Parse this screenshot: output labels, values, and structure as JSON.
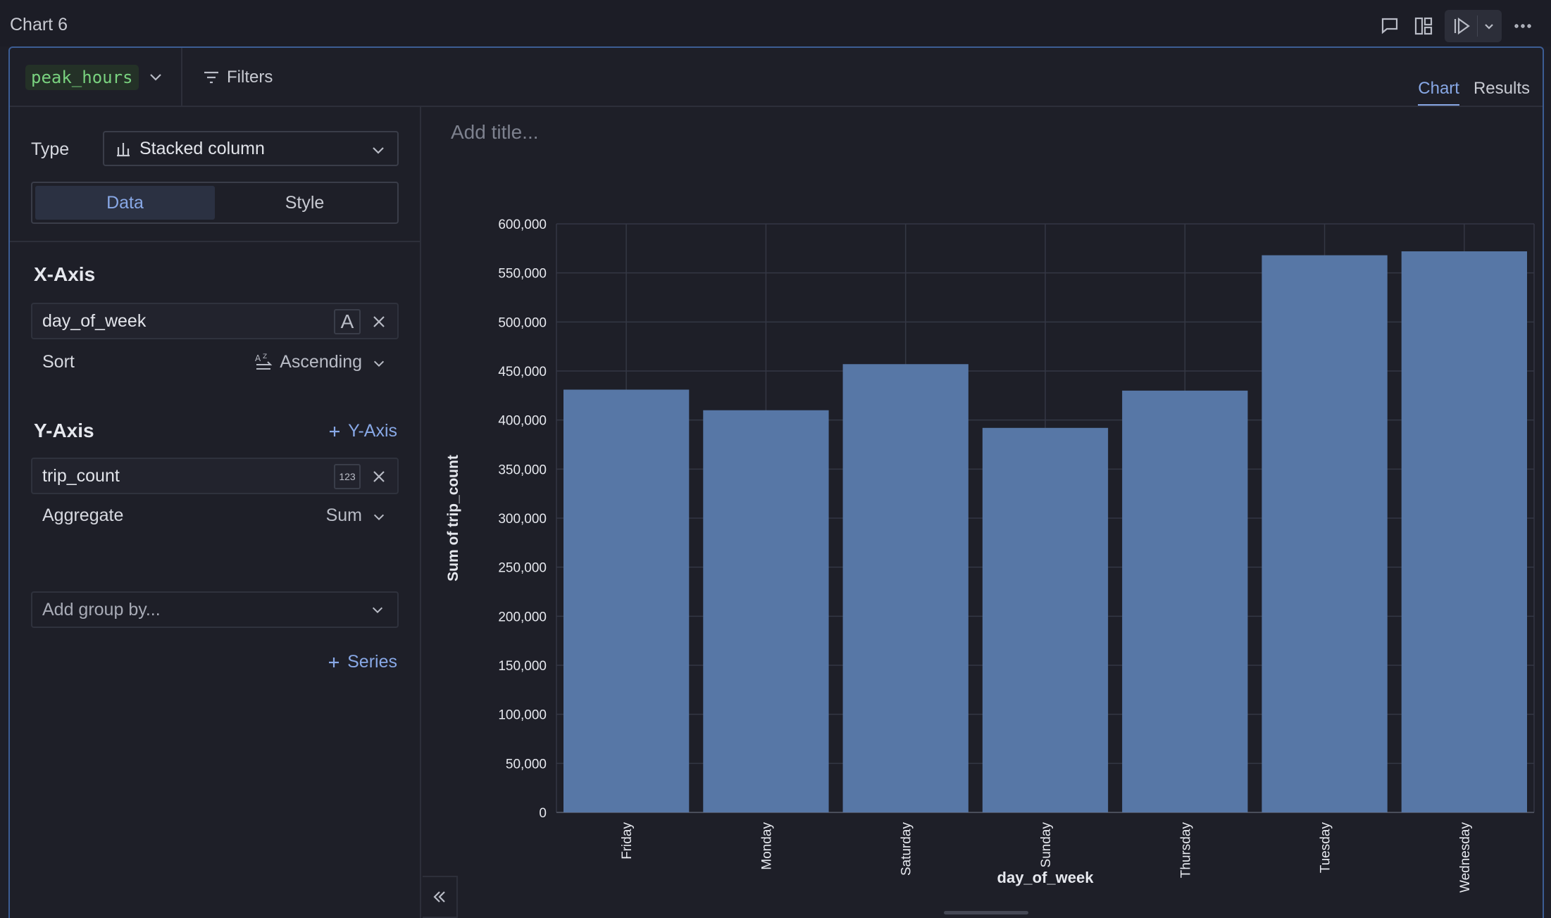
{
  "window": {
    "title": "Chart 6"
  },
  "toolbar": {
    "dataset": "peak_hours",
    "filters_label": "Filters",
    "tabs": [
      {
        "label": "Chart",
        "active": true
      },
      {
        "label": "Results",
        "active": false
      }
    ]
  },
  "config": {
    "type_label": "Type",
    "type_value": "Stacked column",
    "segments": [
      {
        "label": "Data",
        "active": true
      },
      {
        "label": "Style",
        "active": false
      }
    ],
    "x_axis": {
      "title": "X-Axis",
      "field": "day_of_week",
      "field_type": "A",
      "sort_label": "Sort",
      "sort_value": "Ascending"
    },
    "y_axis": {
      "title": "Y-Axis",
      "add_label": "Y-Axis",
      "field": "trip_count",
      "field_type": "123",
      "aggregate_label": "Aggregate",
      "aggregate_value": "Sum",
      "group_by_placeholder": "Add group by...",
      "add_series_label": "Series"
    }
  },
  "chart": {
    "title_placeholder": "Add title..."
  },
  "chart_data": {
    "type": "bar",
    "stacked": true,
    "categories": [
      "Friday",
      "Monday",
      "Saturday",
      "Sunday",
      "Thursday",
      "Tuesday",
      "Wednesday"
    ],
    "series": [
      {
        "values": [
          431000,
          410000,
          457000,
          392000,
          430000,
          568000,
          572000
        ]
      }
    ],
    "xlabel": "day_of_week",
    "ylabel": "Sum of trip_count",
    "ylim": [
      0,
      600000
    ],
    "yticks": [
      0,
      50000,
      100000,
      150000,
      200000,
      250000,
      300000,
      350000,
      400000,
      450000,
      500000,
      550000,
      600000
    ],
    "ytick_labels": [
      "0",
      "50,000",
      "100,000",
      "150,000",
      "200,000",
      "250,000",
      "300,000",
      "350,000",
      "400,000",
      "450,000",
      "500,000",
      "550,000",
      "600,000"
    ],
    "grid": true,
    "bar_color": "#5777a6",
    "grid_color": "#343744"
  }
}
